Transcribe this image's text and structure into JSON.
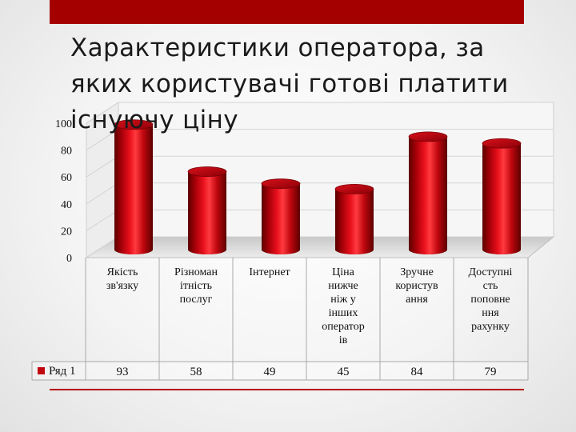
{
  "title": "Характеристики оператора, за яких користувачі готові платити існуючу ціну",
  "colors": {
    "bar": "#c0070f",
    "accent": "#a50000"
  },
  "chart_data": {
    "type": "bar",
    "categories": [
      [
        "Якість",
        "зв'язку"
      ],
      [
        "Різноман",
        "ітність",
        "послуг"
      ],
      [
        "Інтернет"
      ],
      [
        "Ціна",
        "нижче",
        "ніж у",
        "інших",
        "оператор",
        "ів"
      ],
      [
        "Зручне",
        "користув",
        "ання"
      ],
      [
        "Доступні",
        "сть",
        "поповне",
        "ння",
        "рахунку"
      ]
    ],
    "series": [
      {
        "name": "Ряд 1",
        "values": [
          93,
          58,
          49,
          45,
          84,
          79
        ]
      }
    ],
    "value_labels": [
      "93",
      "58",
      "49",
      "45",
      "84",
      "79"
    ],
    "ylim": [
      0,
      100
    ],
    "yticks": [
      "0",
      "20",
      "40",
      "60",
      "80",
      "100"
    ],
    "grid": true,
    "legend": "data-table"
  }
}
